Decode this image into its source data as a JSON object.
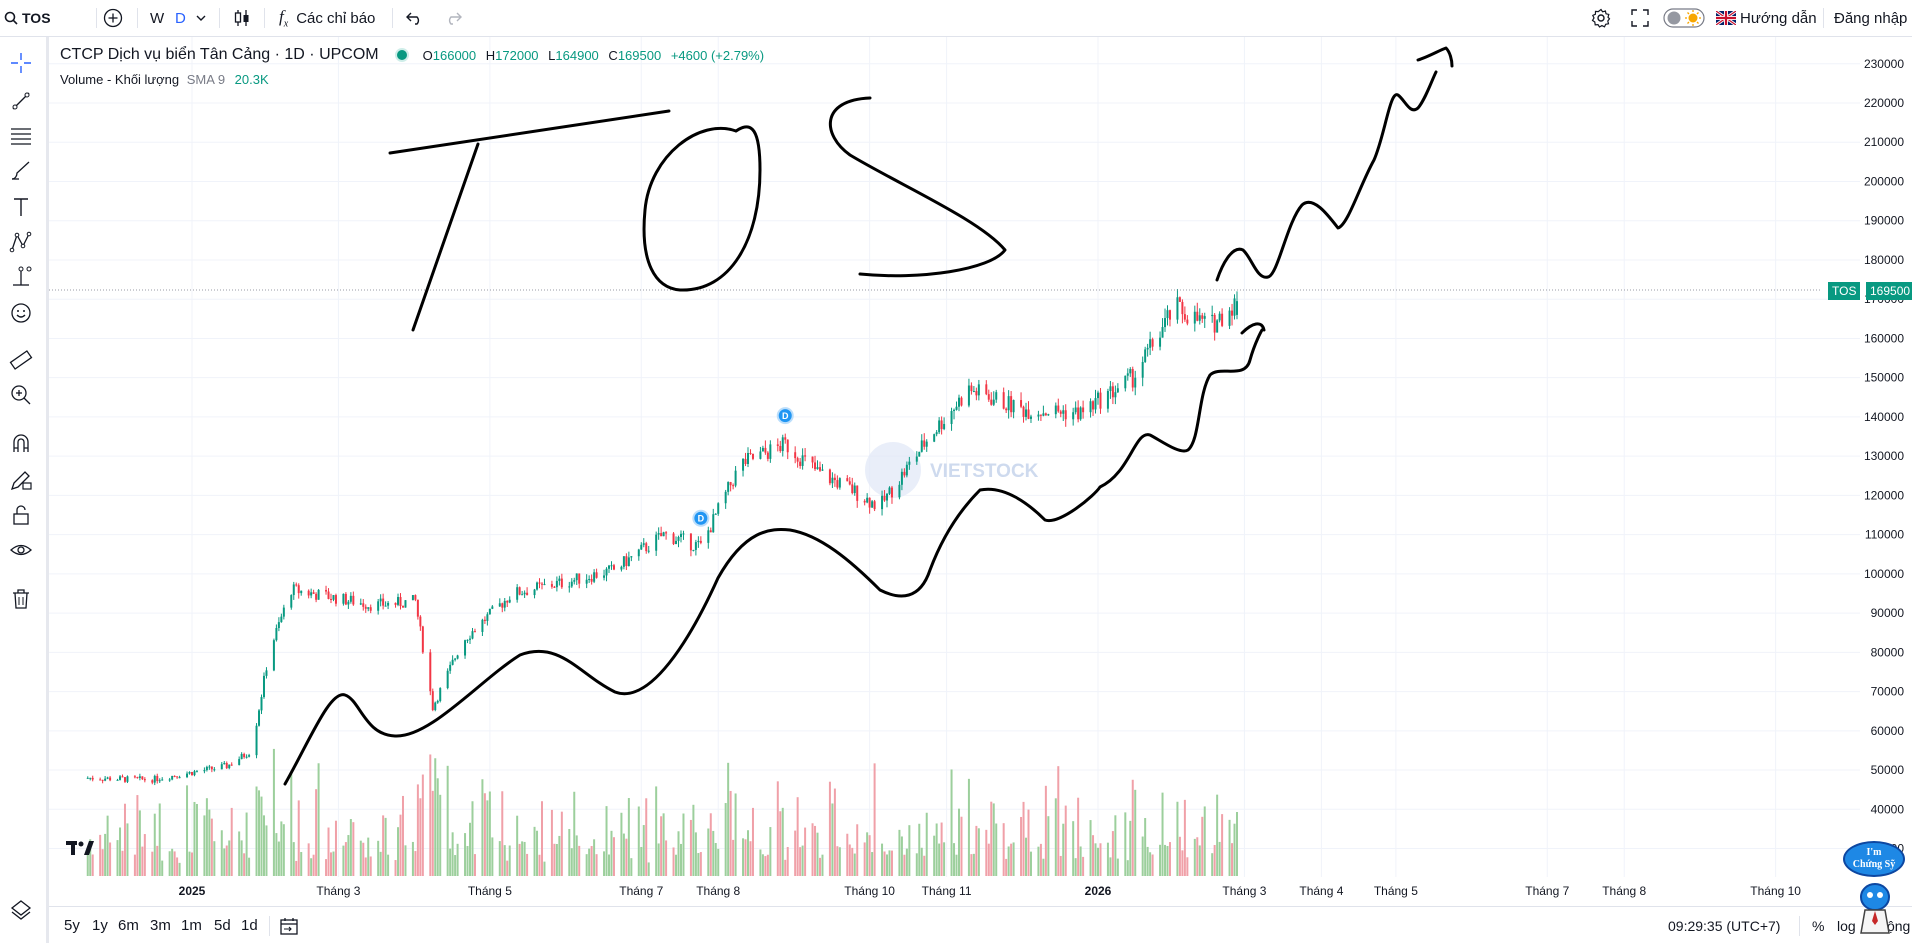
{
  "toolbar": {
    "symbol": "TOS",
    "interval_w": "W",
    "interval_d": "D",
    "indicators_label": "Các chỉ báo",
    "guide_label": "Hướng dẫn",
    "login_label": "Đăng nhập"
  },
  "legend": {
    "title": "CTCP Dịch vụ biển Tân Cảng · 1D · UPCOM",
    "o_key": "O",
    "o_val": "166000",
    "h_key": "H",
    "h_val": "172000",
    "l_key": "L",
    "l_val": "164900",
    "c_key": "C",
    "c_val": "169500",
    "change": "+4600 (+2.79%)",
    "volume_label": "Volume - Khối lượng",
    "volume_sma": "SMA 9",
    "volume_value": "20.3K"
  },
  "watermark": "VIETSTOCK",
  "price_tag": {
    "symbol": "TOS",
    "value": "169500"
  },
  "bottom": {
    "ranges": [
      "5y",
      "1y",
      "6m",
      "3m",
      "1m",
      "5d",
      "1d"
    ],
    "clock": "09:29:35 (UTC+7)",
    "pct": "%",
    "log": "log",
    "auto": "tự động"
  },
  "badge_text": "I'm Chứng Sỹ",
  "annotation_text": "TOS",
  "colors": {
    "up": "#089981",
    "down": "#f23645",
    "vol_up": "#9ccf9c",
    "vol_down": "#f0a0a8",
    "accent": "#2962ff"
  },
  "chart_data": {
    "type": "candlestick",
    "title": "CTCP Dịch vụ biển Tân Cảng · 1D · UPCOM",
    "y_ticks": [
      230000,
      220000,
      210000,
      200000,
      190000,
      180000,
      170000,
      160000,
      150000,
      140000,
      130000,
      120000,
      110000,
      100000,
      90000,
      80000,
      70000,
      60000,
      50000,
      40000,
      30000
    ],
    "ylim": [
      23000,
      233000
    ],
    "x_ticks": [
      "2025",
      "Tháng 3",
      "Tháng 5",
      "Tháng 7",
      "Tháng 8",
      "Tháng 10",
      "Tháng 11",
      "2026",
      "Tháng 3",
      "Tháng 4",
      "Tháng 5",
      "Tháng 7",
      "Tháng 8",
      "Tháng 10"
    ],
    "close_series": [
      {
        "date": "2024-11-20",
        "close": 48000
      },
      {
        "date": "2024-12-15",
        "close": 47500
      },
      {
        "date": "2025-01-15",
        "close": 51000
      },
      {
        "date": "2025-01-25",
        "close": 55000
      },
      {
        "date": "2025-02-01",
        "close": 80000
      },
      {
        "date": "2025-02-10",
        "close": 96000
      },
      {
        "date": "2025-03-15",
        "close": 92000
      },
      {
        "date": "2025-04-01",
        "close": 93000
      },
      {
        "date": "2025-04-08",
        "close": 66000
      },
      {
        "date": "2025-04-20",
        "close": 83000
      },
      {
        "date": "2025-05-10",
        "close": 95000
      },
      {
        "date": "2025-06-01",
        "close": 98000
      },
      {
        "date": "2025-06-20",
        "close": 101000
      },
      {
        "date": "2025-07-10",
        "close": 110000
      },
      {
        "date": "2025-07-25",
        "close": 107000
      },
      {
        "date": "2025-08-10",
        "close": 128000
      },
      {
        "date": "2025-08-28",
        "close": 133000
      },
      {
        "date": "2025-09-10",
        "close": 126000
      },
      {
        "date": "2025-09-25",
        "close": 121000
      },
      {
        "date": "2025-10-05",
        "close": 117000
      },
      {
        "date": "2025-10-25",
        "close": 135000
      },
      {
        "date": "2025-11-10",
        "close": 147000
      },
      {
        "date": "2025-12-01",
        "close": 142000
      },
      {
        "date": "2025-12-25",
        "close": 141000
      },
      {
        "date": "2026-01-15",
        "close": 150000
      },
      {
        "date": "2026-02-01",
        "close": 168000
      },
      {
        "date": "2026-02-15",
        "close": 163000
      },
      {
        "date": "2026-02-26",
        "close": 169500
      }
    ],
    "volume_max": 60000,
    "sma_period": 9,
    "dividend_markers": [
      {
        "date": "2025-07-25",
        "label": "D"
      },
      {
        "date": "2025-08-28",
        "label": "D"
      }
    ]
  }
}
